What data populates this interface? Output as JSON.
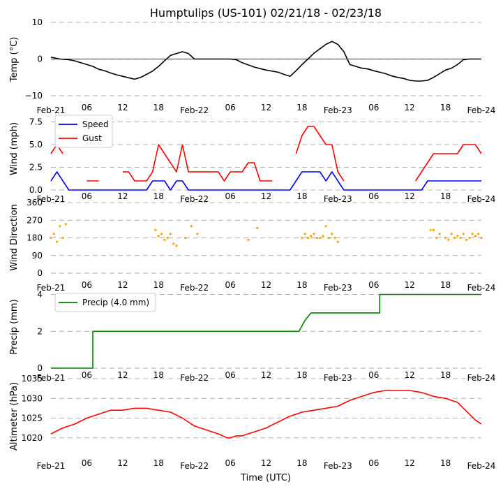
{
  "title": "Humptulips (US-101) 02/21/18 - 02/23/18",
  "xlabel": "Time (UTC)",
  "x_tick_labels": [
    "Feb-21",
    "06",
    "12",
    "18",
    "Feb-22",
    "06",
    "12",
    "18",
    "Feb-23",
    "06",
    "12",
    "18",
    "Feb-24"
  ],
  "x_range_hours": [
    0,
    72
  ],
  "chart_data": [
    {
      "type": "line",
      "title": "Humptulips (US-101) 02/21/18 - 02/23/18",
      "ylabel": "Temp ($^{\\circ}$C)",
      "ylabel_display": "Temp (°C)",
      "ylim": [
        -10,
        10
      ],
      "yticks": [
        "10",
        "0",
        "−10"
      ],
      "series": [
        {
          "name": "Temp",
          "color": "#000000",
          "x": [
            0,
            1.5,
            3,
            4,
            5,
            6,
            7,
            8,
            9,
            10,
            11,
            12,
            13,
            14,
            15,
            16,
            17,
            18,
            19,
            20,
            21,
            22,
            23,
            24,
            26,
            28,
            30,
            31,
            32,
            33,
            34,
            35,
            36,
            37,
            38,
            39,
            40,
            41,
            42,
            43,
            44,
            45,
            46,
            47,
            48,
            49,
            50,
            51,
            52,
            53,
            54,
            55,
            56,
            57,
            58,
            59,
            60,
            61,
            62,
            63,
            64,
            65,
            66,
            67,
            68,
            69,
            70,
            71,
            72
          ],
          "values": [
            0.5,
            0,
            -0.2,
            -0.5,
            -1,
            -1.5,
            -2,
            -2.8,
            -3.2,
            -3.8,
            -4.3,
            -4.7,
            -5.1,
            -5.5,
            -5,
            -4.2,
            -3.3,
            -2,
            -0.5,
            1,
            1.5,
            2,
            1.5,
            0,
            0,
            0,
            0,
            -0.2,
            -1,
            -1.6,
            -2.2,
            -2.6,
            -3,
            -3.3,
            -3.6,
            -4.2,
            -4.7,
            -3.2,
            -1.5,
            0,
            1.6,
            2.8,
            4,
            4.8,
            4,
            2,
            -1.5,
            -2,
            -2.5,
            -2.7,
            -3.2,
            -3.6,
            -4,
            -4.6,
            -5,
            -5.3,
            -5.8,
            -6,
            -6,
            -5.8,
            -5,
            -4,
            -3,
            -2.5,
            -1.5,
            -0.2,
            0,
            0,
            0
          ]
        }
      ]
    },
    {
      "type": "line",
      "ylabel": "Wind (mph)",
      "ylim": [
        0,
        8
      ],
      "yticks": [
        "7.5",
        "5.0",
        "2.5",
        "0.0"
      ],
      "legend": {
        "placement": "top-left",
        "entries": [
          "Speed",
          "Gust"
        ]
      },
      "series": [
        {
          "name": "Speed",
          "color": "#0000ff",
          "x": [
            0,
            1,
            2,
            3,
            4,
            5,
            6,
            7,
            8,
            9,
            10,
            11,
            12,
            13,
            14,
            15,
            16,
            17,
            18,
            19,
            20,
            21,
            22,
            23,
            24,
            25,
            26,
            27,
            28,
            29,
            30,
            31,
            32,
            33,
            34,
            35,
            36,
            37,
            38,
            39,
            40,
            41,
            42,
            43,
            44,
            45,
            46,
            47,
            48,
            49,
            50,
            51,
            52,
            53,
            54,
            55,
            56,
            57,
            58,
            59,
            60,
            61,
            62,
            63,
            64,
            65,
            66,
            67,
            68,
            69,
            70,
            71,
            72
          ],
          "values": [
            1,
            2,
            1,
            0,
            0,
            0,
            0,
            0,
            0,
            0,
            0,
            0,
            0,
            0,
            0,
            0,
            0,
            1,
            1,
            1,
            0,
            1,
            1,
            0,
            0,
            0,
            0,
            0,
            0,
            0,
            0,
            0,
            0,
            0,
            0,
            0,
            0,
            0,
            0,
            0,
            0,
            1,
            2,
            2,
            2,
            2,
            1,
            2,
            1,
            0,
            0,
            0,
            0,
            0,
            0,
            0,
            0,
            0,
            0,
            0,
            0,
            0,
            0,
            1,
            1,
            1,
            1,
            1,
            1,
            1,
            1,
            1,
            1
          ]
        },
        {
          "name": "Gust",
          "color": "#ff0000",
          "x": [
            0,
            1,
            2,
            3,
            4,
            5,
            6,
            7,
            8,
            9,
            10,
            11,
            12,
            13,
            14,
            15,
            16,
            17,
            18,
            19,
            20,
            21,
            22,
            23,
            24,
            25,
            26,
            27,
            28,
            29,
            30,
            31,
            32,
            33,
            34,
            35,
            36,
            37,
            38,
            39,
            40,
            41,
            42,
            43,
            44,
            45,
            46,
            47,
            48,
            49,
            50,
            51,
            52,
            53,
            54,
            55,
            56,
            57,
            58,
            59,
            60,
            61,
            62,
            63,
            64,
            65,
            66,
            67,
            68,
            69,
            70,
            71,
            72
          ],
          "values": [
            4,
            5,
            4,
            null,
            null,
            null,
            1,
            1,
            1,
            null,
            null,
            null,
            2,
            2,
            1,
            1,
            1,
            2,
            5,
            4,
            3,
            2,
            5,
            2,
            2,
            2,
            2,
            2,
            2,
            1,
            2,
            2,
            2,
            3,
            3,
            1,
            1,
            1,
            null,
            null,
            null,
            4,
            6,
            7,
            7,
            6,
            5,
            5,
            2,
            1,
            null,
            null,
            null,
            null,
            null,
            null,
            null,
            null,
            null,
            null,
            null,
            1,
            2,
            3,
            4,
            4,
            4,
            4,
            4,
            5,
            5,
            5,
            4
          ]
        }
      ]
    },
    {
      "type": "scatter",
      "ylabel": "Wind Direction",
      "ylim": [
        0,
        360
      ],
      "yticks": [
        "360",
        "270",
        "180",
        "90",
        "0"
      ],
      "series": [
        {
          "name": "Direction",
          "color": "#ffa500",
          "x": [
            0,
            0.5,
            1,
            1.5,
            2,
            2.5,
            17.5,
            18,
            18.5,
            19,
            19.5,
            20,
            20.5,
            21,
            22.5,
            23.5,
            24.5,
            33,
            34.5,
            42,
            42.5,
            43,
            43.5,
            44,
            44.5,
            45,
            45.5,
            46,
            46.5,
            47,
            47.5,
            48,
            63.5,
            64,
            64.5,
            65,
            66,
            66.5,
            67,
            67.5,
            68,
            68.5,
            69,
            69.5,
            70,
            70.5,
            71,
            71.5,
            72
          ],
          "values": [
            180,
            200,
            160,
            240,
            180,
            250,
            220,
            190,
            200,
            170,
            180,
            200,
            150,
            140,
            180,
            240,
            200,
            170,
            230,
            180,
            200,
            180,
            190,
            200,
            180,
            180,
            190,
            240,
            180,
            200,
            180,
            160,
            220,
            220,
            180,
            200,
            180,
            170,
            200,
            180,
            190,
            180,
            200,
            170,
            180,
            200,
            190,
            200,
            180
          ]
        }
      ]
    },
    {
      "type": "line",
      "ylabel": "Precip (mm)",
      "ylim": [
        0,
        4.4
      ],
      "yticks": [
        "4",
        "2",
        "0"
      ],
      "legend": {
        "placement": "top-left",
        "entries": [
          "Precip (4.0 mm)"
        ]
      },
      "series": [
        {
          "name": "Precip (4.0 mm)",
          "color": "#008000",
          "x": [
            0,
            7,
            7,
            41.5,
            42,
            42.5,
            43,
            43.5,
            44,
            55,
            55,
            72
          ],
          "values": [
            0,
            0,
            2,
            2,
            2.3,
            2.6,
            2.8,
            3,
            3,
            3,
            4,
            4
          ]
        }
      ]
    },
    {
      "type": "line",
      "ylabel": "Altimeter (hPa)",
      "ylim": [
        1015,
        1035
      ],
      "yticks": [
        "1035",
        "1030",
        "1025",
        "1020"
      ],
      "series": [
        {
          "name": "Altimeter",
          "color": "#ff0000",
          "x": [
            0,
            2,
            4,
            6,
            8,
            9,
            10,
            12,
            14,
            16,
            18,
            20,
            22,
            24,
            26,
            28,
            29.5,
            30,
            31,
            32,
            34,
            36,
            38,
            40,
            42,
            44,
            46,
            48,
            50,
            52,
            54,
            56,
            58,
            60,
            62,
            64,
            66,
            68,
            69,
            70,
            71,
            72
          ],
          "values": [
            1021,
            1022.5,
            1023.5,
            1025,
            1026,
            1026.5,
            1027,
            1027,
            1027.5,
            1027.5,
            1027,
            1026.5,
            1025,
            1023,
            1022,
            1021,
            1020,
            1020,
            1020.5,
            1020.5,
            1021.5,
            1022.5,
            1024,
            1025.5,
            1026.5,
            1027,
            1027.5,
            1028,
            1029.5,
            1030.5,
            1031.5,
            1032,
            1032,
            1032,
            1031.5,
            1030.5,
            1030,
            1029,
            1027.5,
            1026,
            1024.5,
            1023.5
          ]
        }
      ]
    }
  ]
}
